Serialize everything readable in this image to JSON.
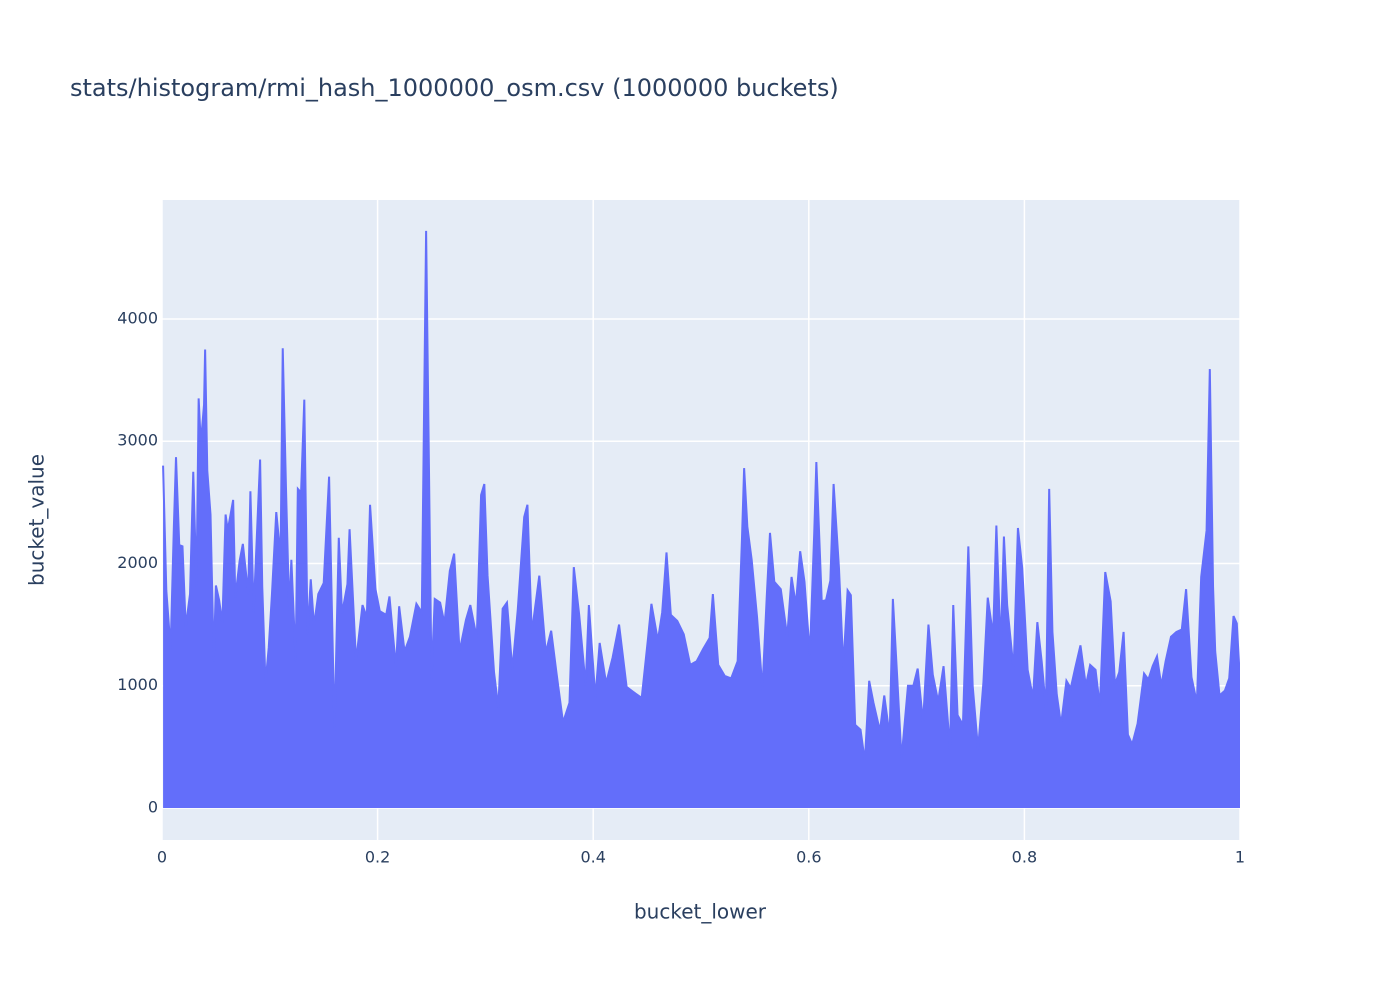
{
  "chart_data": {
    "type": "line",
    "title": "stats/histogram/rmi_hash_1000000_osm.csv (1000000 buckets)",
    "x_label": "bucket_lower",
    "y_label": "bucket_value",
    "xlim": [
      0,
      1
    ],
    "ylim": [
      -262,
      4973
    ],
    "xticks": [
      0,
      0.2,
      0.4,
      0.6,
      0.8,
      1
    ],
    "yticks": [
      0,
      1000,
      2000,
      3000,
      4000
    ],
    "grid": true,
    "series": [
      {
        "color": "#636efa",
        "x": [
          0.001,
          0.004,
          0.008,
          0.011,
          0.013,
          0.016,
          0.019,
          0.022,
          0.026,
          0.029,
          0.032,
          0.034,
          0.036,
          0.039,
          0.04,
          0.042,
          0.045,
          0.048,
          0.05,
          0.053,
          0.056,
          0.059,
          0.061,
          0.066,
          0.068,
          0.072,
          0.075,
          0.08,
          0.082,
          0.085,
          0.091,
          0.093,
          0.096,
          0.099,
          0.102,
          0.106,
          0.11,
          0.112,
          0.115,
          0.118,
          0.12,
          0.124,
          0.126,
          0.129,
          0.132,
          0.135,
          0.138,
          0.141,
          0.145,
          0.15,
          0.155,
          0.16,
          0.164,
          0.167,
          0.172,
          0.174,
          0.18,
          0.186,
          0.19,
          0.193,
          0.198,
          0.202,
          0.208,
          0.211,
          0.217,
          0.22,
          0.225,
          0.23,
          0.236,
          0.241,
          0.245,
          0.25,
          0.253,
          0.258,
          0.262,
          0.267,
          0.271,
          0.276,
          0.282,
          0.286,
          0.292,
          0.296,
          0.299,
          0.302,
          0.308,
          0.312,
          0.316,
          0.32,
          0.325,
          0.33,
          0.336,
          0.339,
          0.343,
          0.35,
          0.356,
          0.361,
          0.366,
          0.372,
          0.378,
          0.382,
          0.387,
          0.393,
          0.396,
          0.402,
          0.406,
          0.412,
          0.418,
          0.424,
          0.431,
          0.437,
          0.445,
          0.451,
          0.454,
          0.46,
          0.464,
          0.468,
          0.472,
          0.478,
          0.484,
          0.49,
          0.496,
          0.502,
          0.508,
          0.511,
          0.516,
          0.522,
          0.528,
          0.534,
          0.538,
          0.54,
          0.543,
          0.547,
          0.552,
          0.557,
          0.561,
          0.564,
          0.568,
          0.574,
          0.58,
          0.584,
          0.588,
          0.592,
          0.596,
          0.601,
          0.605,
          0.607,
          0.612,
          0.616,
          0.62,
          0.623,
          0.628,
          0.632,
          0.636,
          0.639,
          0.643,
          0.648,
          0.652,
          0.656,
          0.66,
          0.666,
          0.67,
          0.675,
          0.678,
          0.682,
          0.686,
          0.692,
          0.697,
          0.701,
          0.706,
          0.711,
          0.715,
          0.72,
          0.725,
          0.731,
          0.734,
          0.738,
          0.743,
          0.748,
          0.752,
          0.757,
          0.762,
          0.766,
          0.771,
          0.774,
          0.778,
          0.781,
          0.784,
          0.79,
          0.794,
          0.798,
          0.803,
          0.808,
          0.812,
          0.816,
          0.82,
          0.823,
          0.826,
          0.83,
          0.834,
          0.839,
          0.843,
          0.847,
          0.852,
          0.857,
          0.861,
          0.866,
          0.87,
          0.875,
          0.88,
          0.884,
          0.888,
          0.892,
          0.896,
          0.9,
          0.905,
          0.911,
          0.915,
          0.919,
          0.923,
          0.927,
          0.931,
          0.936,
          0.941,
          0.946,
          0.95,
          0.955,
          0.96,
          0.964,
          0.969,
          0.972,
          0.975,
          0.977,
          0.981,
          0.986,
          0.99,
          0.994,
          0.997,
          1.0
        ],
        "values": [
          2800,
          1780,
          1300,
          2300,
          2870,
          2150,
          2140,
          1480,
          1750,
          2750,
          1800,
          3350,
          2980,
          3300,
          3750,
          2760,
          2400,
          1200,
          1820,
          1700,
          1510,
          2400,
          2270,
          2520,
          1720,
          2020,
          2160,
          1750,
          2590,
          1600,
          2850,
          1810,
          1020,
          1310,
          1750,
          2420,
          2050,
          3760,
          2620,
          1610,
          2030,
          1200,
          2610,
          2580,
          3340,
          1420,
          1870,
          1490,
          1750,
          1840,
          2710,
          630,
          2210,
          1590,
          1830,
          2280,
          1200,
          1660,
          1560,
          2480,
          1790,
          1610,
          1580,
          1730,
          1150,
          1650,
          1280,
          1400,
          1670,
          1600,
          4720,
          1050,
          1710,
          1680,
          1510,
          1940,
          2080,
          1280,
          1540,
          1660,
          1390,
          2560,
          2650,
          1900,
          1110,
          820,
          1630,
          1680,
          1130,
          1620,
          2380,
          2480,
          1430,
          1900,
          1270,
          1450,
          1100,
          700,
          860,
          1970,
          1580,
          1000,
          1660,
          900,
          1350,
          1020,
          1230,
          1500,
          990,
          950,
          900,
          1400,
          1670,
          1370,
          1600,
          2090,
          1580,
          1530,
          1420,
          1170,
          1200,
          1300,
          1390,
          1750,
          1170,
          1080,
          1060,
          1200,
          2200,
          2780,
          2300,
          2030,
          1560,
          970,
          1730,
          2250,
          1850,
          1790,
          1400,
          1890,
          1660,
          2100,
          1850,
          1250,
          2240,
          2830,
          1690,
          1700,
          1860,
          2650,
          1960,
          1150,
          1780,
          1740,
          680,
          640,
          380,
          1040,
          860,
          630,
          920,
          590,
          1710,
          1070,
          400,
          1000,
          1000,
          1140,
          700,
          1500,
          1090,
          870,
          1160,
          480,
          1660,
          760,
          680,
          2140,
          1000,
          480,
          1030,
          1720,
          1410,
          2310,
          1300,
          2220,
          1660,
          1130,
          2290,
          1960,
          1130,
          900,
          1520,
          1200,
          810,
          2610,
          1440,
          930,
          680,
          1040,
          980,
          1140,
          1330,
          1000,
          1170,
          1130,
          830,
          1930,
          1690,
          1010,
          1110,
          1440,
          600,
          520,
          690,
          1100,
          1050,
          1160,
          1240,
          1000,
          1200,
          1400,
          1440,
          1460,
          1790,
          1070,
          860,
          1890,
          2270,
          3590,
          1810,
          1280,
          920,
          960,
          1060,
          1570,
          1510,
          1040
        ]
      }
    ]
  }
}
